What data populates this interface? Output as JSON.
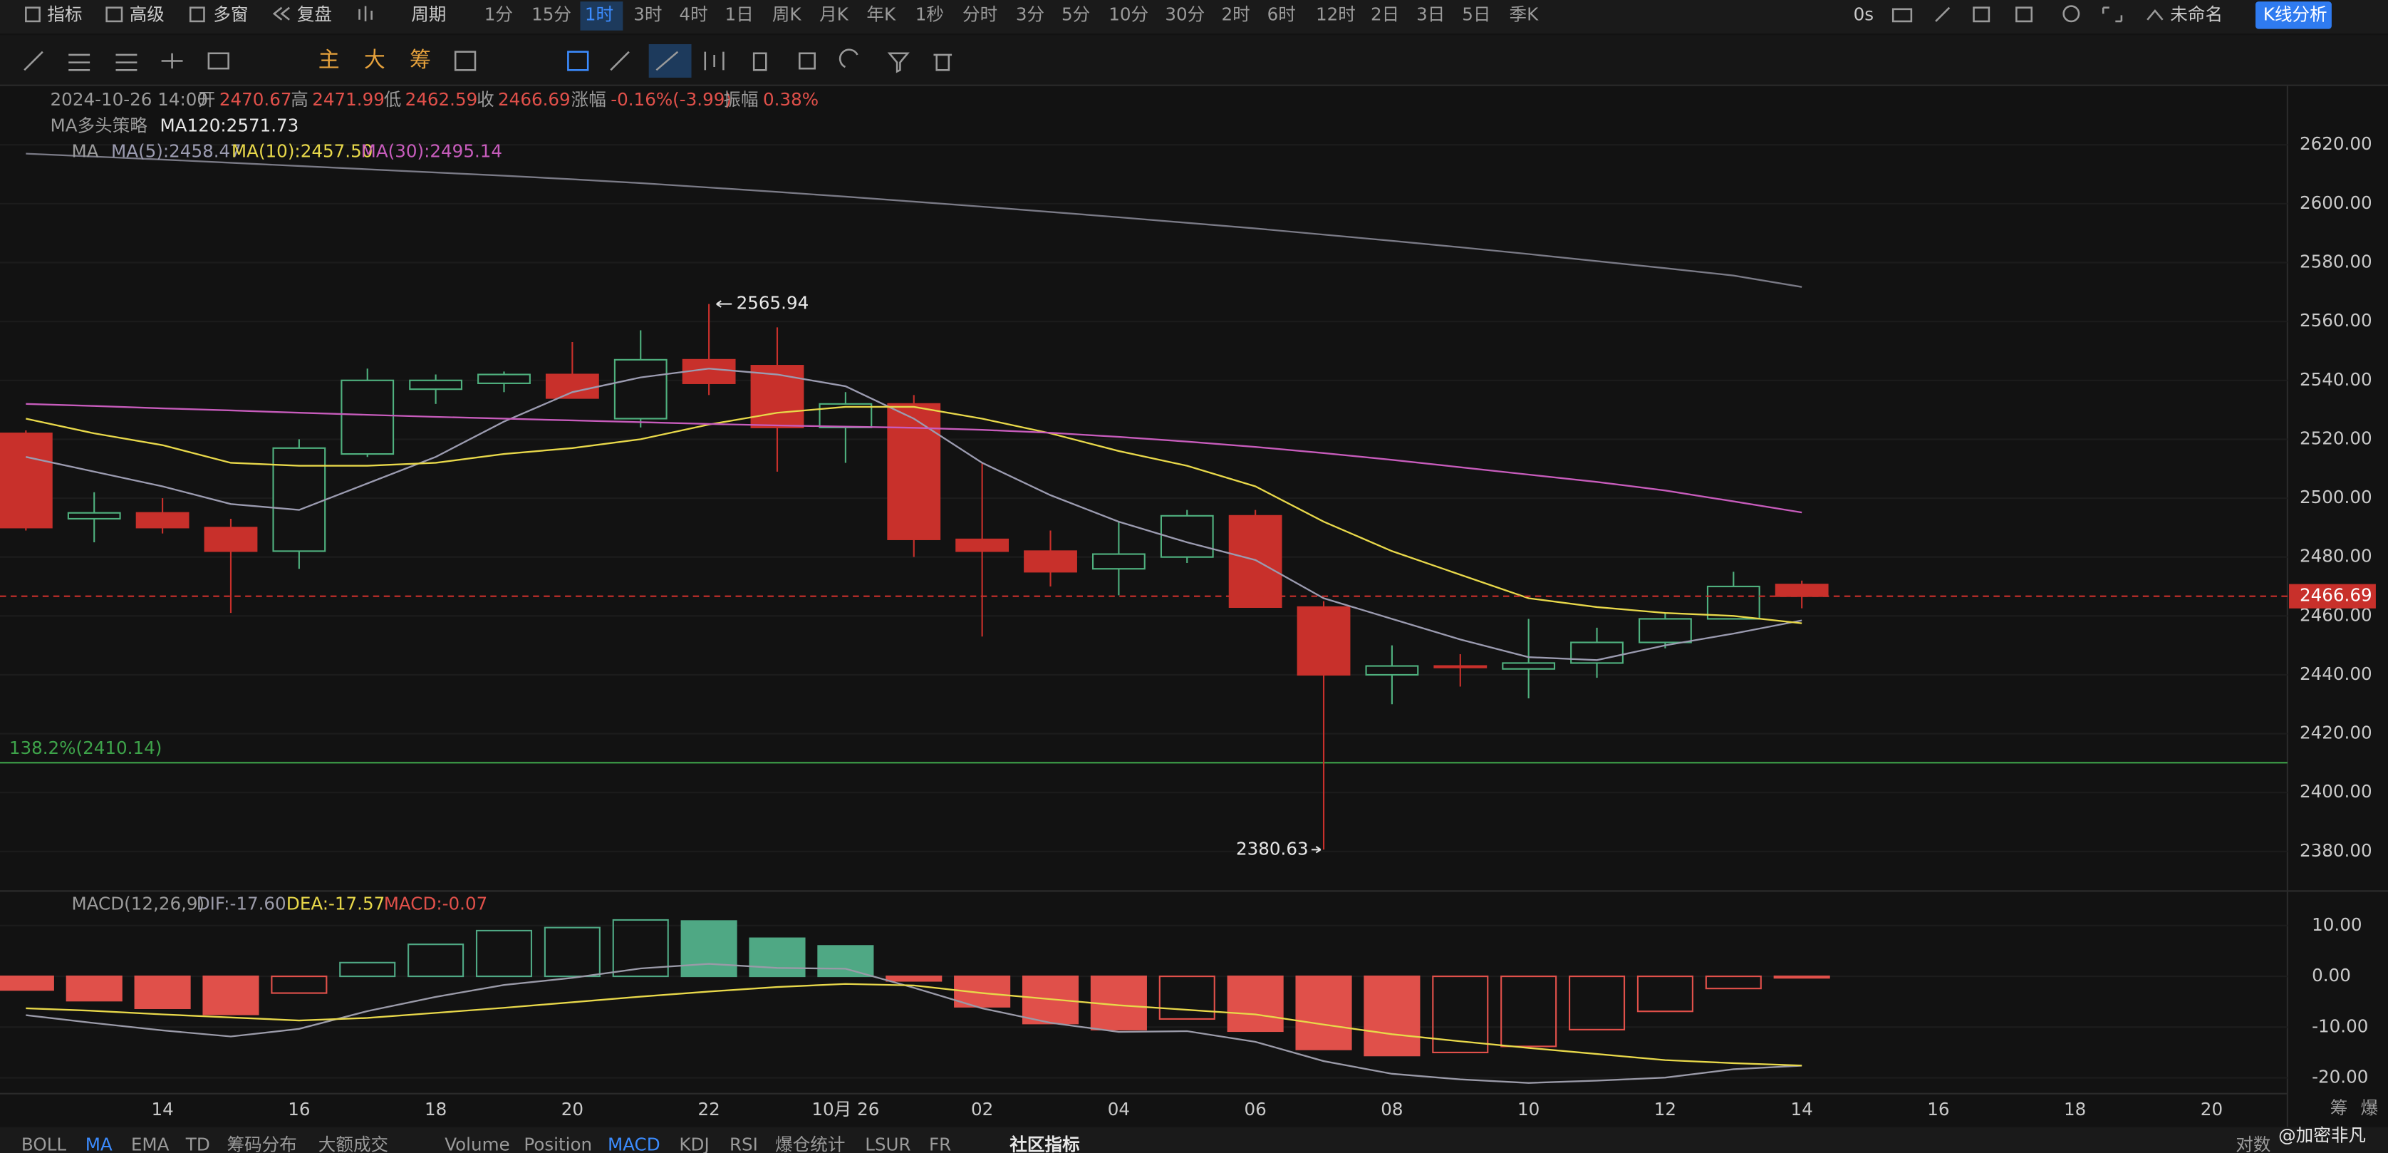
{
  "toolbar": {
    "indicators": "指标",
    "advanced": "高级",
    "multi_window": "多窗",
    "replay": "复盘",
    "period": "周期",
    "intervals": [
      "1分",
      "15分",
      "1时",
      "3时",
      "4时",
      "1日",
      "周K",
      "月K",
      "年K",
      "1秒",
      "分时",
      "3分",
      "5分",
      "10分",
      "30分",
      "2时",
      "6时",
      "12时",
      "2日",
      "3日",
      "5日",
      "季K"
    ],
    "active_interval": 2,
    "latency": "0s",
    "layout_name": "未命名",
    "analysis_button": "K线分析"
  },
  "drawing_toolbar": {
    "main": "主",
    "big": "大",
    "chips": "筹"
  },
  "header": {
    "datetime": "2024-10-26 14:00",
    "fields": [
      [
        "开",
        "2470.67"
      ],
      [
        "高",
        "2471.99"
      ],
      [
        "低",
        "2462.59"
      ],
      [
        "收",
        "2466.69"
      ],
      [
        "涨幅",
        "-0.16%(-3.99)"
      ],
      [
        "振幅",
        "0.38%"
      ]
    ]
  },
  "chart_data": [
    {
      "type": "candlestick",
      "categories": [
        null,
        null,
        "14",
        null,
        "16",
        null,
        "18",
        null,
        "20",
        null,
        "22",
        null,
        "10月 26",
        null,
        "02",
        null,
        "04",
        null,
        "06",
        null,
        "08",
        null,
        "10",
        null,
        "12",
        null,
        "14",
        null,
        "16",
        null,
        "18",
        null,
        "20"
      ],
      "open": [
        2522,
        2493,
        2495,
        2490,
        2482,
        2515,
        2537,
        2539,
        2542,
        2527,
        2547,
        2545,
        2524,
        2532,
        2486,
        2482,
        2476,
        2480,
        2494,
        2463,
        2440,
        2443,
        2442,
        2444,
        2451,
        2459,
        2470.67,
        null,
        null,
        null,
        null,
        null,
        null
      ],
      "high": [
        2523,
        2502,
        2500,
        2493,
        2520,
        2544,
        2542,
        2543,
        2553,
        2557,
        2565.94,
        2558,
        2536,
        2535,
        2512,
        2489,
        2492,
        2496,
        2496,
        2465,
        2450,
        2447,
        2459,
        2456,
        2461,
        2475,
        2471.99,
        null,
        null,
        null,
        null,
        null,
        null
      ],
      "low": [
        2489,
        2485,
        2488,
        2461,
        2476,
        2514,
        2532,
        2536,
        2534,
        2524,
        2535,
        2509,
        2512,
        2480,
        2453,
        2470,
        2467,
        2478,
        2463,
        2380.63,
        2430,
        2436,
        2432,
        2439,
        2449,
        2459,
        2462.59,
        null,
        null,
        null,
        null,
        null,
        null
      ],
      "close": [
        2490,
        2495,
        2490,
        2482,
        2517,
        2540,
        2540,
        2542,
        2534,
        2547,
        2539,
        2524,
        2532,
        2486,
        2482,
        2475,
        2481,
        2494,
        2463,
        2440,
        2443,
        2443,
        2444,
        2451,
        2459,
        2470,
        2466.69,
        null,
        null,
        null,
        null,
        null,
        null
      ],
      "up_color": "#4fb07e",
      "down_color": "#c8302b",
      "strategy_label": "MA多头策略",
      "ma_label": "MA",
      "series": [
        {
          "name": "MA(5):2458.47",
          "color": "#9b9bb0",
          "values": [
            2514,
            2509,
            2504,
            2498,
            2496,
            2505,
            2514,
            2526,
            2536,
            2541,
            2544,
            2542,
            2538,
            2527,
            2512,
            2501,
            2492,
            2485,
            2479,
            2466,
            2459,
            2452,
            2446,
            2445,
            2450,
            2454,
            2458.47,
            null,
            null,
            null,
            null,
            null,
            null
          ]
        },
        {
          "name": "MA(10):2457.50",
          "color": "#e8d84a",
          "values": [
            2527,
            2522,
            2518,
            2512,
            2511,
            2511,
            2512,
            2515,
            2517,
            2520,
            2525,
            2529,
            2531,
            2531,
            2527,
            2522,
            2516,
            2511,
            2504,
            2492,
            2482,
            2474,
            2466,
            2463,
            2461,
            2460,
            2457.5,
            null,
            null,
            null,
            null,
            null,
            null
          ]
        },
        {
          "name": "MA(30):2495.14",
          "color": "#c75cbc",
          "values": [
            2532,
            2531.3,
            2530.5,
            2529.8,
            2529,
            2528.3,
            2527.6,
            2527,
            2526.4,
            2525.8,
            2525.2,
            2524.7,
            2524.3,
            2523.9,
            2523.2,
            2522.2,
            2520.8,
            2519.2,
            2517.4,
            2515.3,
            2513,
            2510.5,
            2508,
            2505.5,
            2502.6,
            2498.9,
            2495.14,
            null,
            null,
            null,
            null,
            null,
            null
          ]
        },
        {
          "name": "MA120:2571.73",
          "color": "#7a7a86",
          "values": [
            2617,
            2616,
            2615,
            2613.9,
            2612.8,
            2611.7,
            2610.6,
            2609.5,
            2608.3,
            2607,
            2605.5,
            2604,
            2602.4,
            2600.7,
            2599,
            2597.2,
            2595.4,
            2593.5,
            2591.6,
            2589.5,
            2587.4,
            2585.2,
            2582.9,
            2580.5,
            2578.1,
            2575.6,
            2571.73,
            null,
            null,
            null,
            null,
            null,
            null
          ]
        }
      ],
      "ylim": [
        2367.6,
        2639.7
      ],
      "yticks": [
        {
          "value": 2380,
          "label": "2380.00"
        },
        {
          "value": 2400,
          "label": "2400.00"
        },
        {
          "value": 2420,
          "label": "2420.00"
        },
        {
          "value": 2440,
          "label": "2440.00"
        },
        {
          "value": 2460,
          "label": "2460.00"
        },
        {
          "value": 2480,
          "label": "2480.00"
        },
        {
          "value": 2500,
          "label": "2500.00"
        },
        {
          "value": 2520,
          "label": "2520.00"
        },
        {
          "value": 2540,
          "label": "2540.00"
        },
        {
          "value": 2560,
          "label": "2560.00"
        },
        {
          "value": 2580,
          "label": "2580.00"
        },
        {
          "value": 2600,
          "label": "2600.00"
        },
        {
          "value": 2620,
          "label": "2620.00"
        }
      ],
      "annotations": [
        {
          "value": 2565.94,
          "label": "2565.94"
        },
        {
          "value": 2380.63,
          "label": "2380.63"
        }
      ],
      "last_price": {
        "value": 2466.69,
        "label": "2466.69",
        "color": "#c8302b"
      },
      "fib_line": {
        "value": 2410.14,
        "label": "138.2%(2410.14)",
        "color": "#3ea34a"
      }
    },
    {
      "type": "macd",
      "title": "MACD(12,26,9)",
      "series": [
        {
          "name": "DIF:-17.60",
          "color": "#9a9aa8",
          "values": [
            -7.65,
            -9.2,
            -10.65,
            -11.85,
            -10.35,
            -6.85,
            -4.05,
            -1.7,
            -0.3,
            1.55,
            2.45,
            1.65,
            1.5,
            -2.25,
            -6.3,
            -9.15,
            -10.95,
            -10.8,
            -12.9,
            -16.7,
            -19.2,
            -20.3,
            -21,
            -20.55,
            -19.95,
            -18.3,
            -17.6,
            null,
            null,
            null,
            null,
            null,
            null
          ]
        },
        {
          "name": "DEA:-17.57",
          "color": "#e8d84a",
          "values": [
            -6.3,
            -6.8,
            -7.5,
            -8.1,
            -8.7,
            -8.2,
            -7.2,
            -6.2,
            -5.1,
            -4,
            -3,
            -2.1,
            -1.5,
            -1.8,
            -3.3,
            -4.5,
            -5.7,
            -6.6,
            -7.5,
            -9.5,
            -11.4,
            -12.8,
            -14.1,
            -15.3,
            -16.5,
            -17.1,
            -17.57,
            null,
            null,
            null,
            null,
            null,
            null
          ]
        }
      ],
      "histogram": {
        "name": "MACD:-0.07",
        "up_color": "#4fa884",
        "down_color": "#e0504a",
        "values": [
          -2.7,
          -4.8,
          -6.3,
          -7.5,
          -3.3,
          2.7,
          6.3,
          9,
          9.6,
          11.1,
          10.9,
          7.5,
          6,
          -0.9,
          -6,
          -9.3,
          -10.5,
          -8.4,
          -10.8,
          -14.4,
          -15.6,
          -15,
          -13.8,
          -10.5,
          -6.9,
          -2.4,
          -0.07,
          null,
          null,
          null,
          null,
          null,
          null
        ]
      },
      "ylim": [
        -23.1,
        16.5
      ],
      "yticks": [
        {
          "value": -20,
          "label": "-20.00"
        },
        {
          "value": -10,
          "label": "-10.00"
        },
        {
          "value": 0,
          "label": "0.00"
        },
        {
          "value": 10,
          "label": "10.00"
        }
      ]
    }
  ],
  "bottom_tabs": {
    "items": [
      "BOLL",
      "MA",
      "EMA",
      "TD",
      "筹码分布",
      "大额成交",
      "Volume",
      "Position",
      "MACD",
      "KDJ",
      "RSI",
      "爆仓统计",
      "LSUR",
      "FR"
    ],
    "active": [
      1,
      8
    ],
    "community": "社区指标",
    "log": "对数",
    "watermark": "@加密非凡"
  },
  "side_labels": [
    "筹",
    "爆"
  ]
}
